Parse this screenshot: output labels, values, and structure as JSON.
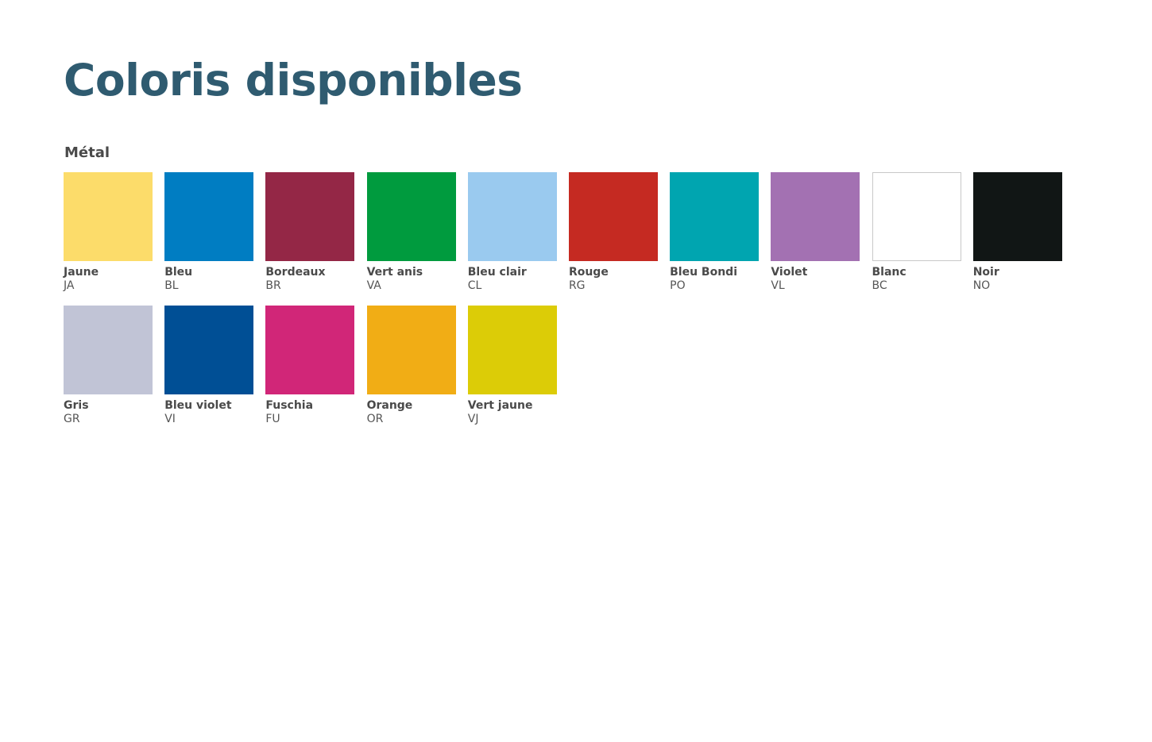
{
  "page": {
    "title": "Coloris disponibles",
    "title_color": "#2f5b70"
  },
  "section": {
    "title": "Métal"
  },
  "swatches": [
    {
      "name": "Jaune",
      "code": "JA",
      "color": "#fcdc6a"
    },
    {
      "name": "Bleu",
      "code": "BL",
      "color": "#007dc2"
    },
    {
      "name": "Bordeaux",
      "code": "BR",
      "color": "#942746"
    },
    {
      "name": "Vert anis",
      "code": "VA",
      "color": "#009b3e"
    },
    {
      "name": "Bleu clair",
      "code": "CL",
      "color": "#9acaef"
    },
    {
      "name": "Rouge",
      "code": "RG",
      "color": "#c52a22"
    },
    {
      "name": "Bleu Bondi",
      "code": "PO",
      "color": "#00a5b0"
    },
    {
      "name": "Violet",
      "code": "VL",
      "color": "#a371b2"
    },
    {
      "name": "Blanc",
      "code": "BC",
      "color": "#ffffff",
      "outlined": true
    },
    {
      "name": "Noir",
      "code": "NO",
      "color": "#111615"
    },
    {
      "name": "Gris",
      "code": "GR",
      "color": "#c1c4d6"
    },
    {
      "name": "Bleu violet",
      "code": "VI",
      "color": "#004f95"
    },
    {
      "name": "Fuschia",
      "code": "FU",
      "color": "#d12678"
    },
    {
      "name": "Orange",
      "code": "OR",
      "color": "#f1ad15"
    },
    {
      "name": "Vert jaune",
      "code": "VJ",
      "color": "#dccc07"
    }
  ]
}
